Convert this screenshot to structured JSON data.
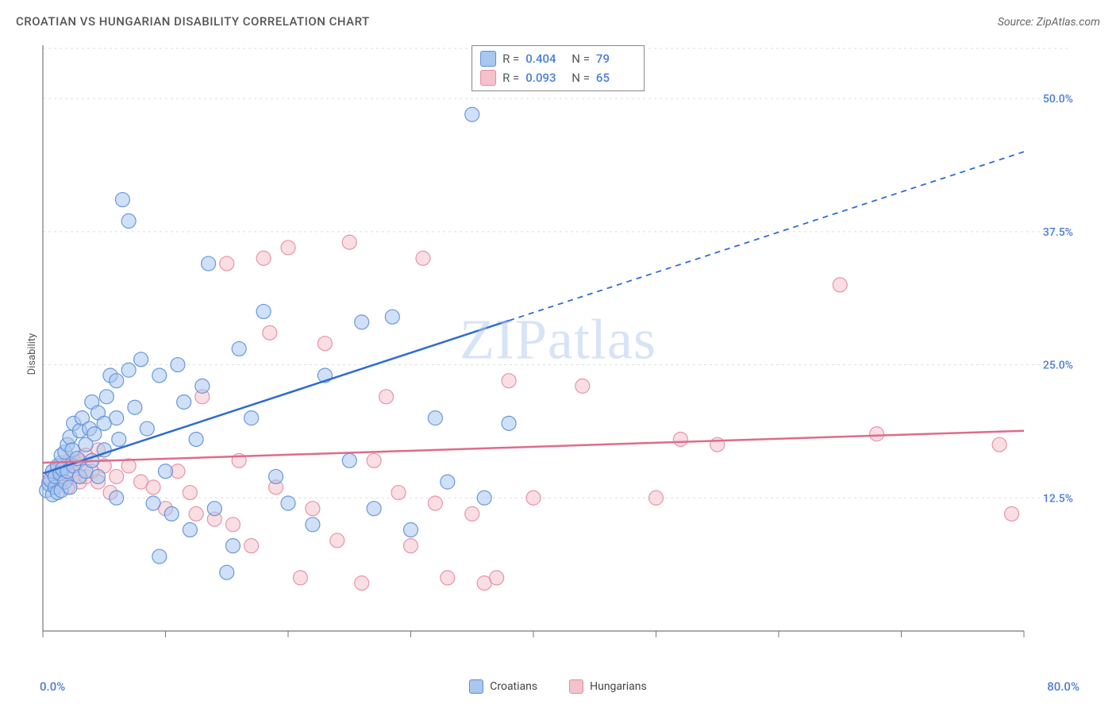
{
  "title": "CROATIAN VS HUNGARIAN DISABILITY CORRELATION CHART",
  "source_label": "Source: ZipAtlas.com",
  "watermark": "ZIPatlas",
  "y_axis_label": "Disability",
  "chart": {
    "type": "scatter",
    "xlim": [
      0,
      80
    ],
    "ylim": [
      0,
      55
    ],
    "x_domain_min_label": "0.0%",
    "x_domain_max_label": "80.0%",
    "y_ticks": [
      12.5,
      25.0,
      37.5,
      50.0
    ],
    "y_tick_labels": [
      "12.5%",
      "25.0%",
      "37.5%",
      "50.0%"
    ],
    "x_ticks": [
      0,
      10,
      20,
      30,
      40,
      50,
      60,
      70,
      80
    ],
    "background_color": "#ffffff",
    "grid_color": "#dddddd",
    "axis_color": "#777777",
    "tick_label_color": "#4a7dd8",
    "marker_radius": 9,
    "marker_opacity": 0.55,
    "series": [
      {
        "name": "Croatians",
        "color_fill": "#a9c7ef",
        "color_stroke": "#5b8fd8",
        "R": "0.404",
        "N": "79",
        "trend": {
          "y_at_x0": 14.8,
          "y_at_x80": 45.0,
          "solid_until_x": 38
        },
        "points": [
          [
            0.3,
            13.2
          ],
          [
            0.5,
            13.8
          ],
          [
            0.6,
            14.2
          ],
          [
            0.8,
            12.8
          ],
          [
            0.8,
            15.0
          ],
          [
            1.0,
            13.5
          ],
          [
            1.0,
            14.5
          ],
          [
            1.2,
            15.5
          ],
          [
            1.2,
            13.0
          ],
          [
            1.4,
            14.8
          ],
          [
            1.5,
            16.5
          ],
          [
            1.5,
            13.2
          ],
          [
            1.6,
            15.2
          ],
          [
            1.8,
            16.8
          ],
          [
            1.8,
            14.0
          ],
          [
            2.0,
            17.5
          ],
          [
            2.0,
            15.0
          ],
          [
            2.2,
            18.2
          ],
          [
            2.2,
            13.5
          ],
          [
            2.4,
            17.0
          ],
          [
            2.5,
            19.5
          ],
          [
            2.5,
            15.5
          ],
          [
            2.8,
            16.2
          ],
          [
            3.0,
            18.8
          ],
          [
            3.0,
            14.5
          ],
          [
            3.2,
            20.0
          ],
          [
            3.5,
            17.5
          ],
          [
            3.5,
            15.0
          ],
          [
            3.8,
            19.0
          ],
          [
            4.0,
            16.0
          ],
          [
            4.0,
            21.5
          ],
          [
            4.2,
            18.5
          ],
          [
            4.5,
            20.5
          ],
          [
            4.5,
            14.5
          ],
          [
            5.0,
            19.5
          ],
          [
            5.0,
            17.0
          ],
          [
            5.2,
            22.0
          ],
          [
            5.5,
            24.0
          ],
          [
            6.0,
            20.0
          ],
          [
            6.0,
            23.5
          ],
          [
            6.0,
            12.5
          ],
          [
            6.2,
            18.0
          ],
          [
            6.5,
            40.5
          ],
          [
            7.0,
            24.5
          ],
          [
            7.0,
            38.5
          ],
          [
            7.5,
            21.0
          ],
          [
            8.0,
            25.5
          ],
          [
            8.5,
            19.0
          ],
          [
            9.0,
            12.0
          ],
          [
            9.5,
            7.0
          ],
          [
            9.5,
            24.0
          ],
          [
            10.0,
            15.0
          ],
          [
            10.5,
            11.0
          ],
          [
            11.0,
            25.0
          ],
          [
            11.5,
            21.5
          ],
          [
            12.0,
            9.5
          ],
          [
            12.5,
            18.0
          ],
          [
            13.0,
            23.0
          ],
          [
            13.5,
            34.5
          ],
          [
            14.0,
            11.5
          ],
          [
            15.0,
            5.5
          ],
          [
            15.5,
            8.0
          ],
          [
            16.0,
            26.5
          ],
          [
            17.0,
            20.0
          ],
          [
            18.0,
            30.0
          ],
          [
            19.0,
            14.5
          ],
          [
            20.0,
            12.0
          ],
          [
            22.0,
            10.0
          ],
          [
            23.0,
            24.0
          ],
          [
            25.0,
            16.0
          ],
          [
            26.0,
            29.0
          ],
          [
            27.0,
            11.5
          ],
          [
            28.5,
            29.5
          ],
          [
            30.0,
            9.5
          ],
          [
            32.0,
            20.0
          ],
          [
            33.0,
            14.0
          ],
          [
            35.0,
            48.5
          ],
          [
            36.0,
            12.5
          ],
          [
            38.0,
            19.5
          ]
        ]
      },
      {
        "name": "Hungarians",
        "color_fill": "#f4c2cd",
        "color_stroke": "#e58aa0",
        "R": "0.093",
        "N": "65",
        "trend": {
          "y_at_x0": 15.8,
          "y_at_x80": 18.8,
          "solid_until_x": 80
        },
        "points": [
          [
            0.5,
            14.0
          ],
          [
            0.8,
            15.0
          ],
          [
            1.0,
            14.5
          ],
          [
            1.2,
            15.2
          ],
          [
            1.5,
            14.0
          ],
          [
            1.5,
            15.8
          ],
          [
            1.8,
            14.8
          ],
          [
            2.0,
            15.5
          ],
          [
            2.0,
            13.5
          ],
          [
            2.2,
            16.0
          ],
          [
            2.5,
            14.5
          ],
          [
            2.8,
            15.8
          ],
          [
            3.0,
            16.0
          ],
          [
            3.0,
            14.0
          ],
          [
            3.5,
            16.5
          ],
          [
            3.5,
            14.5
          ],
          [
            4.0,
            15.0
          ],
          [
            4.5,
            17.0
          ],
          [
            4.5,
            14.0
          ],
          [
            5.0,
            15.5
          ],
          [
            5.5,
            13.0
          ],
          [
            6.0,
            14.5
          ],
          [
            7.0,
            15.5
          ],
          [
            8.0,
            14.0
          ],
          [
            9.0,
            13.5
          ],
          [
            10.0,
            11.5
          ],
          [
            11.0,
            15.0
          ],
          [
            12.0,
            13.0
          ],
          [
            12.5,
            11.0
          ],
          [
            13.0,
            22.0
          ],
          [
            14.0,
            10.5
          ],
          [
            15.0,
            34.5
          ],
          [
            15.5,
            10.0
          ],
          [
            16.0,
            16.0
          ],
          [
            17.0,
            8.0
          ],
          [
            18.0,
            35.0
          ],
          [
            18.5,
            28.0
          ],
          [
            19.0,
            13.5
          ],
          [
            20.0,
            36.0
          ],
          [
            21.0,
            5.0
          ],
          [
            22.0,
            11.5
          ],
          [
            23.0,
            27.0
          ],
          [
            24.0,
            8.5
          ],
          [
            25.0,
            36.5
          ],
          [
            26.0,
            4.5
          ],
          [
            27.0,
            16.0
          ],
          [
            28.0,
            22.0
          ],
          [
            29.0,
            13.0
          ],
          [
            30.0,
            8.0
          ],
          [
            31.0,
            35.0
          ],
          [
            32.0,
            12.0
          ],
          [
            33.0,
            5.0
          ],
          [
            35.0,
            11.0
          ],
          [
            36.0,
            4.5
          ],
          [
            37.0,
            5.0
          ],
          [
            38.0,
            23.5
          ],
          [
            40.0,
            12.5
          ],
          [
            44.0,
            23.0
          ],
          [
            50.0,
            12.5
          ],
          [
            52.0,
            18.0
          ],
          [
            55.0,
            17.5
          ],
          [
            65.0,
            32.5
          ],
          [
            68.0,
            18.5
          ],
          [
            78.0,
            17.5
          ],
          [
            79.0,
            11.0
          ]
        ]
      }
    ]
  },
  "legend": {
    "series1_label": "Croatians",
    "series2_label": "Hungarians"
  },
  "stats_box": {
    "R_label": "R =",
    "N_label": "N ="
  }
}
